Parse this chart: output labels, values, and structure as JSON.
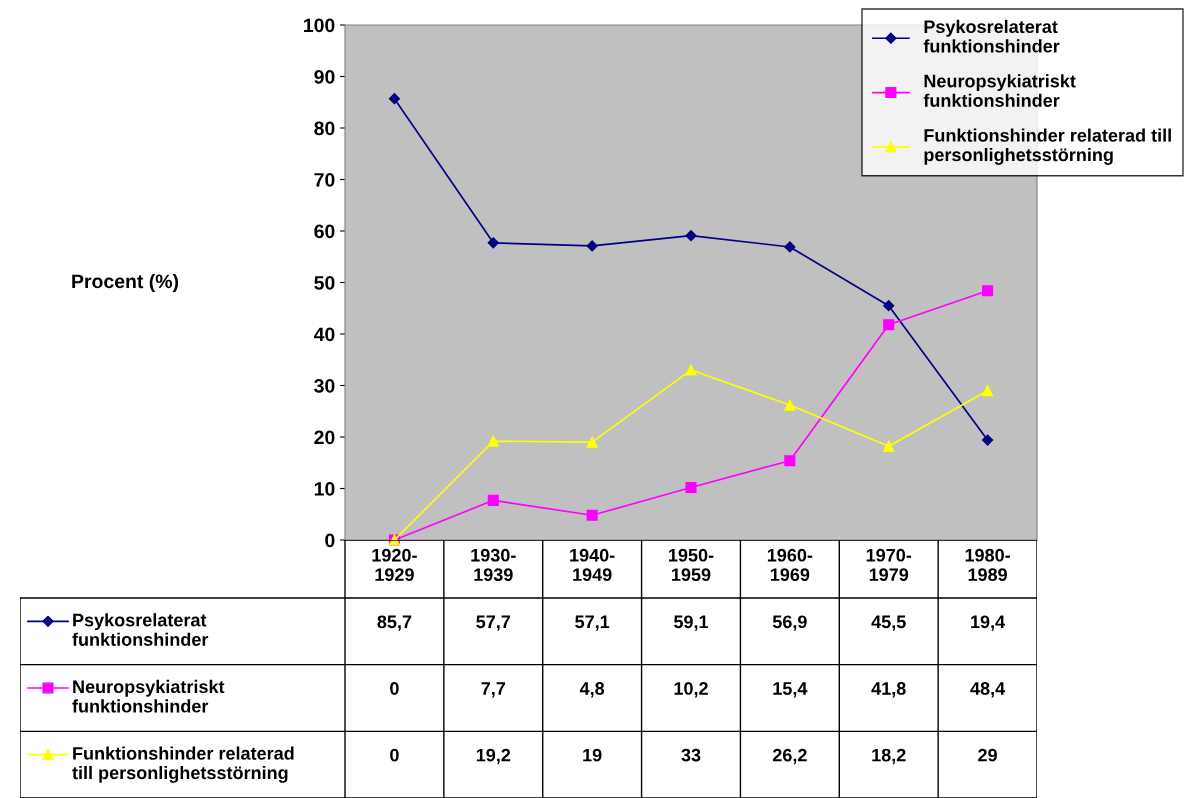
{
  "chart_data": {
    "type": "line",
    "annotations": [
      "Procent (%)"
    ],
    "categories": [
      "1920-1929",
      "1930-1939",
      "1940-1949",
      "1950-1959",
      "1960-1969",
      "1970-1979",
      "1980-1989"
    ],
    "series": [
      {
        "name": "Psykosrelaterat funktionshinder",
        "color": "#000080",
        "marker": "diamond",
        "values": [
          85.7,
          57.7,
          57.1,
          59.1,
          56.9,
          45.5,
          19.4
        ],
        "value_labels": [
          "85,7",
          "57,7",
          "57,1",
          "59,1",
          "56,9",
          "45,5",
          "19,4"
        ]
      },
      {
        "name": "Neuropsykiatriskt funktionshinder",
        "color": "#ff00ff",
        "marker": "square",
        "values": [
          0,
          7.7,
          4.8,
          10.2,
          15.4,
          41.8,
          48.4
        ],
        "value_labels": [
          "0",
          "7,7",
          "4,8",
          "10,2",
          "15,4",
          "41,8",
          "48,4"
        ]
      },
      {
        "name": "Funktionshinder relaterad till personlighetsstörning",
        "color": "#ffff00",
        "marker": "triangle",
        "values": [
          0,
          19.2,
          19,
          33,
          26.2,
          18.2,
          29
        ],
        "value_labels": [
          "0",
          "19,2",
          "19",
          "33",
          "26,2",
          "18,2",
          "29"
        ]
      }
    ],
    "ylim": [
      0,
      100
    ],
    "yticks": [
      0,
      10,
      20,
      30,
      40,
      50,
      60,
      70,
      80,
      90,
      100
    ],
    "grid": false,
    "legend": "top right",
    "line_style": "solid"
  }
}
